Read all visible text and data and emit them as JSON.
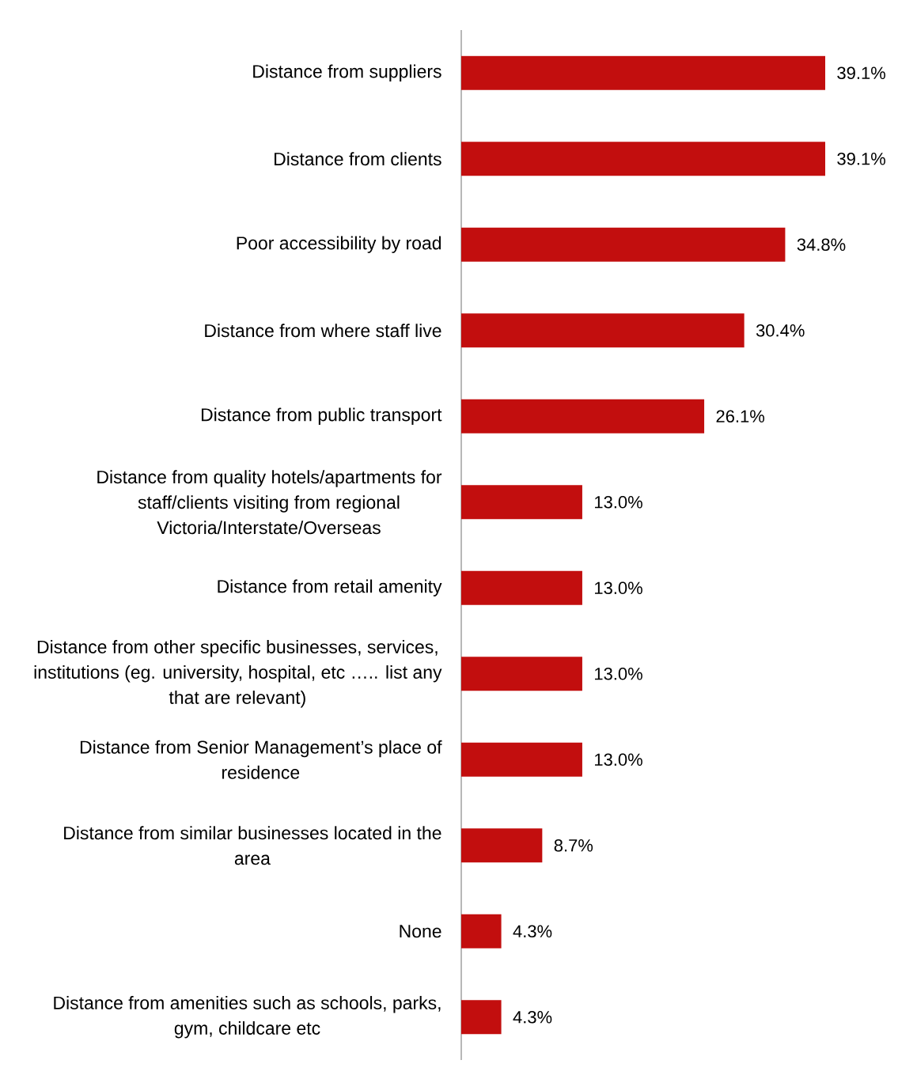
{
  "chart_data": {
    "type": "bar",
    "orientation": "horizontal",
    "color": "#c20e0e",
    "categories": [
      "Distance from suppliers",
      "Distance from clients",
      "Poor accessibility by road",
      "Distance from where staff live",
      "Distance from public transport",
      "Distance from quality hotels/apartments for staff/clients visiting from regional Victoria/Interstate/Overseas",
      "Distance from retail amenity",
      "Distance from other specific businesses, services, institutions (eg. university, hospital, etc ….. list any that are relevant)",
      "Distance from Senior Management’s place of residence",
      "Distance from similar businesses located in the area",
      "None",
      "Distance from amenities such as schools, parks, gym, childcare etc"
    ],
    "values": [
      39.1,
      39.1,
      34.8,
      30.4,
      26.1,
      13.0,
      13.0,
      13.0,
      13.0,
      8.7,
      4.3,
      4.3
    ],
    "value_labels": [
      "39.1%",
      "39.1%",
      "34.8%",
      "30.4%",
      "26.1%",
      "13.0%",
      "13.0%",
      "13.0%",
      "13.0%",
      "8.7%",
      "4.3%",
      "4.3%"
    ]
  }
}
